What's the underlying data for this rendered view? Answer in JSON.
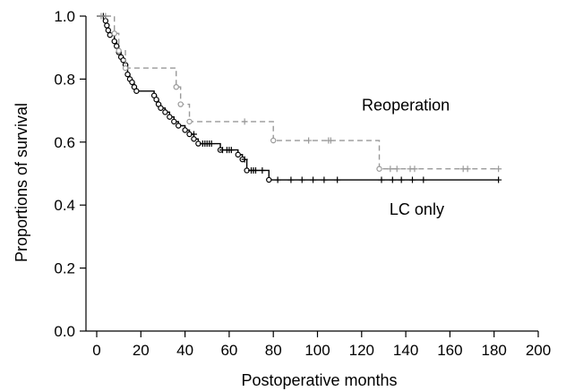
{
  "chart_data": {
    "type": "line",
    "chart_style": "kaplan-meier step curves with circle event markers and plus censor marks",
    "xlabel": "Postoperative months",
    "ylabel": "Proportions of survival",
    "xlim": [
      0,
      200
    ],
    "ylim": [
      0,
      1.0
    ],
    "x_ticks": [
      "0",
      "20",
      "40",
      "60",
      "80",
      "100",
      "120",
      "140",
      "160",
      "180",
      "200"
    ],
    "y_ticks": [
      "0.0",
      "0.2",
      "0.4",
      "0.6",
      "0.8",
      "1.0"
    ],
    "grid": false,
    "legend": "none",
    "series": [
      {
        "name": "LC only",
        "color": "#000000",
        "line_style": "solid",
        "steps": [
          [
            0,
            1.0
          ],
          [
            4,
            0.985
          ],
          [
            4.6,
            0.97
          ],
          [
            5.2,
            0.955
          ],
          [
            6,
            0.94
          ],
          [
            8,
            0.92
          ],
          [
            9,
            0.905
          ],
          [
            10,
            0.885
          ],
          [
            11,
            0.87
          ],
          [
            12,
            0.86
          ],
          [
            13,
            0.845
          ],
          [
            14,
            0.815
          ],
          [
            15,
            0.8
          ],
          [
            16,
            0.79
          ],
          [
            17,
            0.775
          ],
          [
            18,
            0.762
          ],
          [
            26,
            0.748
          ],
          [
            27,
            0.735
          ],
          [
            28,
            0.72
          ],
          [
            29,
            0.708
          ],
          [
            31,
            0.695
          ],
          [
            33,
            0.68
          ],
          [
            35,
            0.665
          ],
          [
            37,
            0.652
          ],
          [
            40,
            0.638
          ],
          [
            42,
            0.625
          ],
          [
            44,
            0.61
          ],
          [
            46,
            0.595
          ],
          [
            56,
            0.575
          ],
          [
            64,
            0.56
          ],
          [
            66,
            0.545
          ],
          [
            68,
            0.51
          ],
          [
            78,
            0.48
          ]
        ],
        "end_x": 182,
        "censored": [
          [
            3,
            1.0
          ],
          [
            44,
            0.625
          ],
          [
            48,
            0.595
          ],
          [
            49,
            0.595
          ],
          [
            50,
            0.595
          ],
          [
            51,
            0.595
          ],
          [
            52,
            0.595
          ],
          [
            57,
            0.575
          ],
          [
            59,
            0.575
          ],
          [
            60,
            0.575
          ],
          [
            61,
            0.575
          ],
          [
            67,
            0.545
          ],
          [
            70,
            0.51
          ],
          [
            71,
            0.51
          ],
          [
            72,
            0.51
          ],
          [
            75,
            0.51
          ],
          [
            82,
            0.48
          ],
          [
            88,
            0.48
          ],
          [
            93,
            0.48
          ],
          [
            98,
            0.48
          ],
          [
            103,
            0.48
          ],
          [
            109,
            0.48
          ],
          [
            129,
            0.48
          ],
          [
            134,
            0.48
          ],
          [
            138,
            0.48
          ],
          [
            143,
            0.48
          ],
          [
            148,
            0.48
          ],
          [
            182,
            0.48
          ]
        ]
      },
      {
        "name": "Reoperation",
        "color": "#999999",
        "line_style": "dashed",
        "steps": [
          [
            0,
            1.0
          ],
          [
            8,
            0.945
          ],
          [
            10,
            0.89
          ],
          [
            13,
            0.835
          ],
          [
            36,
            0.775
          ],
          [
            38,
            0.72
          ],
          [
            42,
            0.665
          ],
          [
            80,
            0.605
          ],
          [
            128,
            0.515
          ]
        ],
        "end_x": 182,
        "censored": [
          [
            2,
            1.0
          ],
          [
            4,
            1.0
          ],
          [
            67,
            0.665
          ],
          [
            96,
            0.605
          ],
          [
            105,
            0.605
          ],
          [
            106,
            0.605
          ],
          [
            133,
            0.515
          ],
          [
            136,
            0.515
          ],
          [
            142,
            0.515
          ],
          [
            144,
            0.515
          ],
          [
            166,
            0.515
          ],
          [
            168,
            0.515
          ],
          [
            182,
            0.515
          ]
        ]
      }
    ],
    "annotations": [
      {
        "text": "Reoperation",
        "x": 140,
        "y": 0.7
      },
      {
        "text": "LC only",
        "x": 145,
        "y": 0.37
      }
    ]
  }
}
